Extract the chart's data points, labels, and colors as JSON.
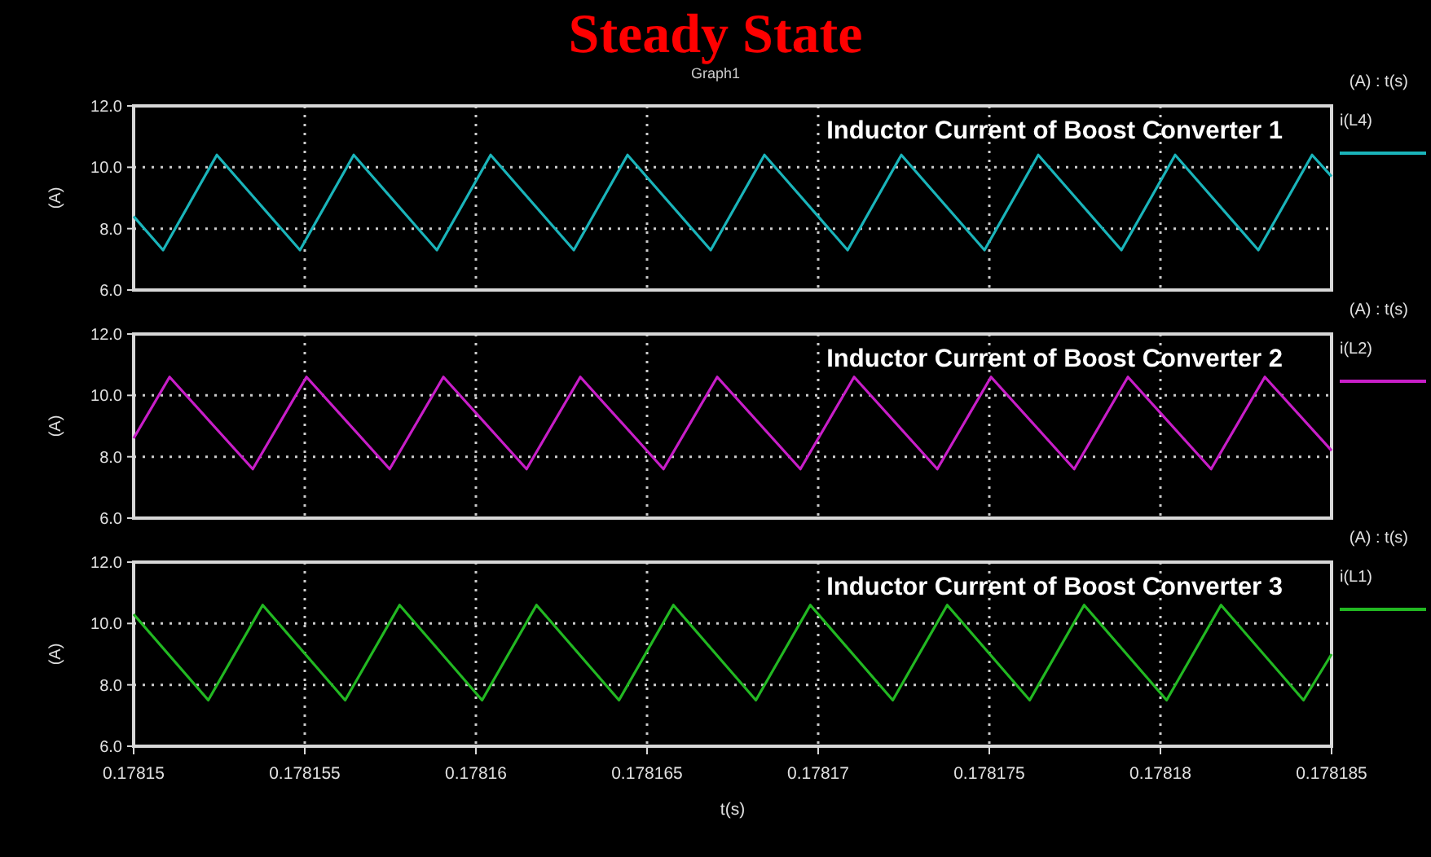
{
  "chart_data": [
    {
      "type": "line",
      "title": "Inductor Current of Boost Converter 1",
      "ylabel": "(A)",
      "annotations": [
        "(A) : t(s)",
        "Steady State",
        "Graph1"
      ],
      "legend": "right",
      "grid": true,
      "tick_labels": "y",
      "xlim": [
        0.17815,
        0.178185
      ],
      "xticks": [
        0.17815,
        0.178155,
        0.17816,
        0.178165,
        0.17817,
        0.178175,
        0.17818,
        0.178185
      ],
      "ylim": [
        6,
        12
      ],
      "yticks": [
        {
          "value": 6,
          "label": "6.0"
        },
        {
          "value": 8,
          "label": "8.0"
        },
        {
          "value": 10,
          "label": "10.0"
        },
        {
          "value": 12,
          "label": "12.0"
        }
      ],
      "series": [
        {
          "name": "i(L4)",
          "color": "#1ab4ba",
          "x": [
            0.17815,
            0.17815086,
            0.17815243,
            0.17815486,
            0.17815643,
            0.17815886,
            0.17816043,
            0.17816286,
            0.17816443,
            0.17816686,
            0.17816843,
            0.17817086,
            0.17817243,
            0.17817486,
            0.17817643,
            0.17817886,
            0.17818043,
            0.17818286,
            0.17818443,
            0.178185
          ],
          "values": [
            8.4,
            7.3,
            10.4,
            7.3,
            10.4,
            7.3,
            10.4,
            7.3,
            10.4,
            7.3,
            10.4,
            7.3,
            10.4,
            7.3,
            10.4,
            7.3,
            10.4,
            7.3,
            10.4,
            9.7
          ]
        }
      ]
    },
    {
      "type": "line",
      "title": "Inductor Current of Boost Converter 2",
      "ylabel": "(A)",
      "annotations": [
        "(A) : t(s)"
      ],
      "legend": "right",
      "grid": true,
      "tick_labels": "y",
      "xlim": [
        0.17815,
        0.178185
      ],
      "xticks": [
        0.17815,
        0.178155,
        0.17816,
        0.178165,
        0.17817,
        0.178175,
        0.17818,
        0.178185
      ],
      "ylim": [
        6,
        12
      ],
      "yticks": [
        {
          "value": 6,
          "label": "6.0"
        },
        {
          "value": 8,
          "label": "8.0"
        },
        {
          "value": 10,
          "label": "10.0"
        },
        {
          "value": 12,
          "label": "12.0"
        }
      ],
      "series": [
        {
          "name": "i(L2)",
          "color": "#c81ec8",
          "x": [
            0.17815,
            0.17815105,
            0.17815348,
            0.17815505,
            0.17815748,
            0.17815905,
            0.17816148,
            0.17816305,
            0.17816548,
            0.17816705,
            0.17816948,
            0.17817105,
            0.17817348,
            0.17817505,
            0.17817748,
            0.17817905,
            0.17818148,
            0.17818305,
            0.178185
          ],
          "values": [
            8.6,
            10.6,
            7.6,
            10.6,
            7.6,
            10.6,
            7.6,
            10.6,
            7.6,
            10.6,
            7.6,
            10.6,
            7.6,
            10.6,
            7.6,
            10.6,
            7.6,
            10.6,
            8.2
          ]
        }
      ]
    },
    {
      "type": "line",
      "title": "Inductor Current of Boost Converter 3",
      "xlabel": "t(s)",
      "ylabel": "(A)",
      "annotations": [
        "(A) : t(s)"
      ],
      "legend": "right",
      "grid": true,
      "xlim": [
        0.17815,
        0.178185
      ],
      "xticks": [
        0.17815,
        0.178155,
        0.17816,
        0.178165,
        0.17817,
        0.178175,
        0.17818,
        0.178185
      ],
      "ylim": [
        6,
        12
      ],
      "yticks": [
        {
          "value": 6,
          "label": "6.0"
        },
        {
          "value": 8,
          "label": "8.0"
        },
        {
          "value": 10,
          "label": "10.0"
        },
        {
          "value": 12,
          "label": "12.0"
        }
      ],
      "series": [
        {
          "name": "i(L1)",
          "color": "#22b822",
          "x": [
            0.17815,
            0.17815218,
            0.17815377,
            0.17815618,
            0.17815777,
            0.17816018,
            0.17816177,
            0.17816418,
            0.17816577,
            0.17816818,
            0.17816977,
            0.17817218,
            0.17817377,
            0.17817618,
            0.17817777,
            0.17818018,
            0.17818177,
            0.17818418,
            0.178185
          ],
          "values": [
            10.3,
            7.5,
            10.6,
            7.5,
            10.6,
            7.5,
            10.6,
            7.5,
            10.6,
            7.5,
            10.6,
            7.5,
            10.6,
            7.5,
            10.6,
            7.5,
            10.6,
            7.5,
            9.0
          ]
        }
      ]
    }
  ]
}
